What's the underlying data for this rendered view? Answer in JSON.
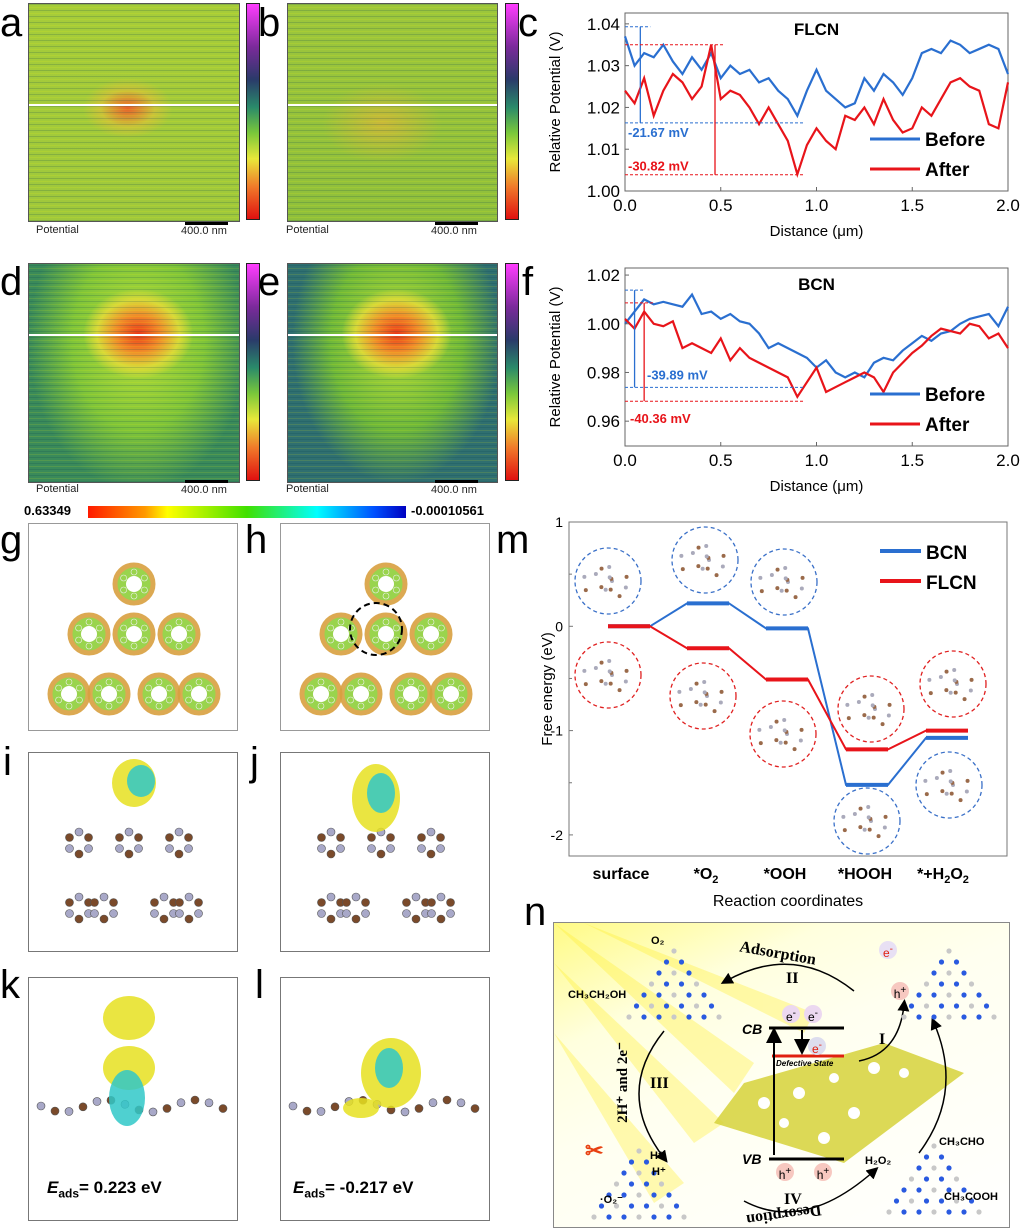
{
  "panel_labels": {
    "a": "a",
    "b": "b",
    "c": "c",
    "d": "d",
    "e": "e",
    "f": "f",
    "g": "g",
    "h": "h",
    "i": "i",
    "j": "j",
    "k": "k",
    "l": "l",
    "m": "m",
    "n": "n"
  },
  "kpfm": {
    "caption": "Potential",
    "scale": "400.0 nm"
  },
  "esp_colorbar": {
    "max": "0.63349",
    "min": "-0.00010561"
  },
  "adsorption": {
    "k_label": "E",
    "k_sub": "ads",
    "k_value": "= 0.223 eV",
    "l_label": "E",
    "l_sub": "ads",
    "l_value": "= -0.217 eV"
  },
  "chart_data": [
    {
      "id": "c",
      "type": "line",
      "title": "FLCN",
      "xlabel": "Distance (μm)",
      "ylabel": "Relative Potential (V)",
      "xlim": [
        0,
        2.0
      ],
      "ylim": [
        1.0,
        1.0426
      ],
      "xticks": [
        "0.0",
        "0.5",
        "1.0",
        "1.5",
        "2.0"
      ],
      "yticks": [
        "1.00",
        "1.01",
        "1.02",
        "1.03",
        "1.04"
      ],
      "ytick_values": [
        1.0,
        1.01,
        1.02,
        1.03,
        1.04
      ],
      "legend": "bottom-right",
      "x": [
        0,
        0.05,
        0.1,
        0.15,
        0.2,
        0.25,
        0.3,
        0.35,
        0.4,
        0.45,
        0.5,
        0.55,
        0.6,
        0.65,
        0.7,
        0.75,
        0.8,
        0.85,
        0.9,
        0.95,
        1.0,
        1.05,
        1.1,
        1.15,
        1.2,
        1.25,
        1.3,
        1.35,
        1.4,
        1.45,
        1.5,
        1.55,
        1.6,
        1.65,
        1.7,
        1.75,
        1.8,
        1.85,
        1.9,
        1.95,
        2.0
      ],
      "series": [
        {
          "name": "Before",
          "color": "#2a6fd0",
          "values": [
            1.037,
            1.03,
            1.033,
            1.032,
            1.035,
            1.031,
            1.028,
            1.032,
            1.029,
            1.033,
            1.027,
            1.03,
            1.028,
            1.029,
            1.026,
            1.027,
            1.024,
            1.022,
            1.018,
            1.024,
            1.029,
            1.024,
            1.022,
            1.02,
            1.021,
            1.027,
            1.024,
            1.028,
            1.026,
            1.023,
            1.027,
            1.033,
            1.034,
            1.033,
            1.036,
            1.035,
            1.033,
            1.034,
            1.035,
            1.034,
            1.028
          ]
        },
        {
          "name": "After",
          "color": "#e8141a",
          "values": [
            1.024,
            1.021,
            1.027,
            1.018,
            1.024,
            1.028,
            1.026,
            1.022,
            1.025,
            1.035,
            1.022,
            1.024,
            1.023,
            1.02,
            1.016,
            1.02,
            1.016,
            1.012,
            1.004,
            1.011,
            1.015,
            1.012,
            1.01,
            1.018,
            1.017,
            1.02,
            1.016,
            1.022,
            1.017,
            1.014,
            1.015,
            1.02,
            1.018,
            1.022,
            1.026,
            1.027,
            1.025,
            1.024,
            1.016,
            1.015,
            1.026
          ]
        }
      ],
      "annotations": [
        {
          "text": "-21.67 mV",
          "color": "#2a6fd0",
          "from": 1.0393,
          "to": 1.0163,
          "x": 0.08
        },
        {
          "text": "-30.82 mV",
          "color": "#e8141a",
          "from": 1.035,
          "to": 1.0039,
          "x": 0.47
        }
      ]
    },
    {
      "id": "f",
      "type": "line",
      "title": "BCN",
      "xlabel": "Distance (μm)",
      "ylabel": "Relative Potential (V)",
      "xlim": [
        0,
        2.0
      ],
      "ylim": [
        0.9498,
        1.0229
      ],
      "xticks": [
        "0.0",
        "0.5",
        "1.0",
        "1.5",
        "2.0"
      ],
      "yticks": [
        "0.96",
        "0.98",
        "1.00",
        "1.02"
      ],
      "ytick_values": [
        0.96,
        0.98,
        1.0,
        1.02
      ],
      "legend": "bottom-right",
      "x": [
        0,
        0.05,
        0.1,
        0.15,
        0.2,
        0.25,
        0.3,
        0.35,
        0.4,
        0.45,
        0.5,
        0.55,
        0.6,
        0.65,
        0.7,
        0.75,
        0.8,
        0.85,
        0.9,
        0.95,
        1.0,
        1.05,
        1.1,
        1.15,
        1.2,
        1.25,
        1.3,
        1.35,
        1.4,
        1.45,
        1.5,
        1.55,
        1.6,
        1.65,
        1.7,
        1.75,
        1.8,
        1.85,
        1.9,
        1.95,
        2.0
      ],
      "series": [
        {
          "name": "Before",
          "color": "#2a6fd0",
          "values": [
            1.0,
            1.005,
            1.01,
            1.008,
            1.009,
            1.008,
            1.007,
            1.012,
            1.004,
            1.005,
            1.002,
            1.004,
            1.001,
            1.0,
            0.996,
            0.99,
            0.992,
            0.99,
            0.988,
            0.986,
            0.982,
            0.985,
            0.98,
            0.978,
            0.98,
            0.978,
            0.984,
            0.986,
            0.985,
            0.989,
            0.992,
            0.995,
            0.993,
            0.996,
            0.997,
            1.0,
            1.002,
            1.003,
            1.004,
            0.999,
            1.007
          ]
        },
        {
          "name": "After",
          "color": "#e8141a",
          "values": [
            1.002,
            0.998,
            1.005,
            1.0,
            0.999,
            1.001,
            0.99,
            0.992,
            0.99,
            0.988,
            0.994,
            0.985,
            0.99,
            0.986,
            0.984,
            0.982,
            0.98,
            0.978,
            0.97,
            0.976,
            0.982,
            0.972,
            0.974,
            0.976,
            0.978,
            0.98,
            0.978,
            0.972,
            0.98,
            0.984,
            0.988,
            0.991,
            0.995,
            0.998,
            0.997,
            0.996,
            1.0,
            0.999,
            0.994,
            0.996,
            0.99
          ]
        }
      ],
      "annotations": [
        {
          "text": "-39.89 mV",
          "color": "#2a6fd0",
          "from": 1.0138,
          "to": 0.9739,
          "x": 0.05
        },
        {
          "text": "-40.36 mV",
          "color": "#e8141a",
          "from": 1.0086,
          "to": 0.9682,
          "x": 0.1
        }
      ]
    },
    {
      "id": "m",
      "type": "line",
      "title": "",
      "xlabel": "Reaction coordinates",
      "ylabel": "Free energy (eV)",
      "ylim": [
        -2.2,
        1
      ],
      "categories": [
        "surface",
        "*O2",
        "*OOH",
        "*HOOH",
        "*+H2O2"
      ],
      "category_parts": [
        [
          "surface",
          ""
        ],
        [
          "*O",
          "2"
        ],
        [
          "*OOH",
          ""
        ],
        [
          "*HOOH",
          ""
        ],
        [
          "*+H",
          "2",
          "O",
          "2"
        ]
      ],
      "yticks": [
        "-2",
        "-1",
        "0",
        "1"
      ],
      "ytick_values": [
        -2,
        -1,
        0,
        1
      ],
      "legend": "top-right",
      "series": [
        {
          "name": "BCN",
          "color": "#2a6fd0",
          "values": [
            0,
            0.22,
            -0.02,
            -1.52,
            -1.07
          ]
        },
        {
          "name": "FLCN",
          "color": "#e8141a",
          "values": [
            0,
            -0.21,
            -0.51,
            -1.18,
            -1.0
          ]
        }
      ]
    }
  ],
  "scheme": {
    "adsorption": "Adsorption",
    "desorption": "Desorption",
    "step1": "I",
    "step2": "II",
    "step3": "III",
    "step4": "IV",
    "cb": "CB",
    "vb": "VB",
    "defect": "Defective State",
    "electron": "e",
    "hole": "h",
    "minus": "-",
    "plus": "+",
    "o2": "O₂",
    "ethanol": "CH₃CH₂OH",
    "proton": "H⁺",
    "superoxide": "·O₂⁻",
    "h2o2": "H₂O₂",
    "acetaldehyde": "CH₃CHO",
    "acetic_acid": "CH₃COOH",
    "hydrogenation": "2H⁺ and 2e⁻"
  }
}
